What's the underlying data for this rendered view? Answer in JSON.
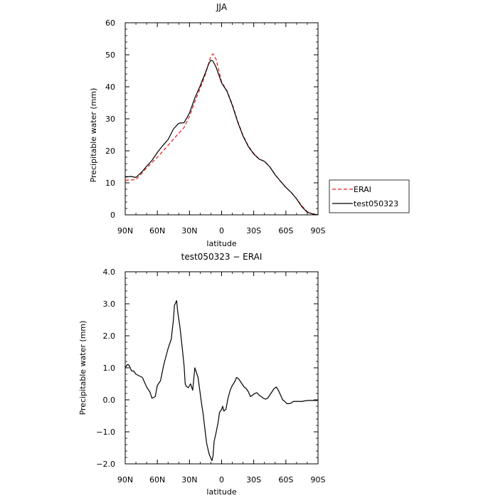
{
  "colors": {
    "erai": "#e41a1c",
    "model": "#000000"
  },
  "chart_data": [
    {
      "type": "line",
      "title": "JJA",
      "xlabel": "latitude",
      "ylabel": "Precipitable water (mm)",
      "xlim": [
        90,
        -90
      ],
      "ylim": [
        0,
        60
      ],
      "x_tick_values": [
        90,
        60,
        30,
        0,
        -30,
        -60,
        -90
      ],
      "x_tick_labels": [
        "90N",
        "60N",
        "30N",
        "0",
        "30S",
        "60S",
        "90S"
      ],
      "y_tick_values": [
        0,
        10,
        20,
        30,
        40,
        50,
        60
      ],
      "y_tick_labels": [
        "0",
        "10",
        "20",
        "30",
        "40",
        "50",
        "60"
      ],
      "legend": {
        "position": "right",
        "entries": [
          "ERAI",
          "test050323"
        ]
      },
      "series": [
        {
          "name": "ERAI",
          "color": "#e41a1c",
          "dash": "dashed",
          "x": [
            90,
            85,
            80,
            75,
            70,
            65,
            60,
            55,
            50,
            45,
            40,
            35,
            30,
            25,
            20,
            15,
            12,
            10,
            8,
            5,
            0,
            -5,
            -10,
            -15,
            -20,
            -25,
            -30,
            -35,
            -40,
            -45,
            -50,
            -55,
            -60,
            -65,
            -70,
            -75,
            -80,
            -85,
            -90
          ],
          "y": [
            10.8,
            10.9,
            11.0,
            12.8,
            14.7,
            16.3,
            18.0,
            19.8,
            21.7,
            23.6,
            25.5,
            27.3,
            30.8,
            35.3,
            39.5,
            44.0,
            47.5,
            49.6,
            50.3,
            48.5,
            41.5,
            38.8,
            34.5,
            29.3,
            24.8,
            21.5,
            19.2,
            17.5,
            16.7,
            15.0,
            12.5,
            10.5,
            8.5,
            7.0,
            5.0,
            2.8,
            1.0,
            0.3,
            0.0
          ]
        },
        {
          "name": "test050323",
          "color": "#000000",
          "dash": "solid",
          "x": [
            90,
            85,
            80,
            75,
            70,
            65,
            60,
            55,
            50,
            45,
            40,
            35,
            30,
            25,
            20,
            15,
            12,
            10,
            8,
            5,
            0,
            -5,
            -10,
            -15,
            -20,
            -25,
            -30,
            -35,
            -40,
            -45,
            -50,
            -55,
            -60,
            -65,
            -70,
            -75,
            -80,
            -85,
            -90
          ],
          "y": [
            11.8,
            12.0,
            11.7,
            13.2,
            15.2,
            17.0,
            19.5,
            21.6,
            23.5,
            26.8,
            28.6,
            28.8,
            31.8,
            36.5,
            40.3,
            44.5,
            47.2,
            48.3,
            48.0,
            46.0,
            41.2,
            38.6,
            34.2,
            29.0,
            24.6,
            21.3,
            19.0,
            17.4,
            16.7,
            15.0,
            12.5,
            10.5,
            8.6,
            7.0,
            5.0,
            2.5,
            0.8,
            0.3,
            0.0
          ]
        }
      ]
    },
    {
      "type": "line",
      "title": "test050323 − ERAI",
      "xlabel": "latitude",
      "ylabel": "Precipitable water (mm)",
      "xlim": [
        90,
        -90
      ],
      "ylim": [
        -2.0,
        4.0
      ],
      "x_tick_values": [
        90,
        60,
        30,
        0,
        -30,
        -60,
        -90
      ],
      "x_tick_labels": [
        "90N",
        "60N",
        "30N",
        "0",
        "30S",
        "60S",
        "90S"
      ],
      "y_tick_values": [
        -2,
        -1,
        0,
        1,
        2,
        3,
        4
      ],
      "y_tick_labels": [
        "−2.0",
        "−1.0",
        "0.0",
        "1.0",
        "2.0",
        "3.0",
        "4.0"
      ],
      "series": [
        {
          "name": "test050323",
          "color": "#000000",
          "dash": "solid",
          "x": [
            90,
            88,
            87,
            86,
            84,
            82,
            80,
            77,
            74,
            72,
            70,
            69,
            67,
            65,
            62,
            60,
            57,
            54,
            52,
            50,
            48,
            47,
            46,
            45,
            44,
            42,
            41,
            39,
            37,
            35,
            34,
            33,
            31,
            29,
            27,
            25,
            22,
            19,
            17,
            16,
            14,
            12,
            11,
            9,
            8,
            7,
            5,
            3,
            2,
            0,
            -1,
            -2,
            -4,
            -6,
            -8,
            -10,
            -12,
            -14,
            -16,
            -17,
            -19,
            -21,
            -23,
            -25,
            -27,
            -29,
            -31,
            -33,
            -35,
            -37,
            -39,
            -41,
            -43,
            -45,
            -47,
            -49,
            -51,
            -53,
            -55,
            -57,
            -59,
            -61,
            -63,
            -65,
            -67,
            -70,
            -72,
            -75,
            -78,
            -81,
            -84,
            -87,
            -90
          ],
          "y": [
            1.0,
            1.1,
            1.1,
            1.05,
            0.9,
            0.9,
            0.8,
            0.75,
            0.7,
            0.55,
            0.4,
            0.35,
            0.25,
            0.05,
            0.1,
            0.45,
            0.6,
            1.1,
            1.35,
            1.6,
            1.8,
            1.9,
            2.2,
            2.5,
            2.95,
            3.1,
            2.75,
            2.3,
            1.7,
            1.05,
            0.5,
            0.42,
            0.38,
            0.5,
            0.3,
            1.0,
            0.7,
            -0.05,
            -0.5,
            -0.8,
            -1.35,
            -1.65,
            -1.75,
            -1.9,
            -1.75,
            -1.3,
            -1.0,
            -0.65,
            -0.4,
            -0.3,
            -0.2,
            -0.35,
            -0.3,
            0.05,
            0.3,
            0.45,
            0.55,
            0.7,
            0.65,
            0.6,
            0.5,
            0.4,
            0.35,
            0.25,
            0.1,
            0.15,
            0.2,
            0.22,
            0.15,
            0.1,
            0.05,
            0.02,
            0.05,
            0.15,
            0.25,
            0.35,
            0.4,
            0.3,
            0.15,
            0.0,
            -0.05,
            -0.12,
            -0.12,
            -0.1,
            -0.05,
            -0.05,
            -0.05,
            -0.05,
            -0.03,
            -0.02,
            -0.02,
            -0.02,
            -0.02
          ]
        }
      ]
    }
  ]
}
